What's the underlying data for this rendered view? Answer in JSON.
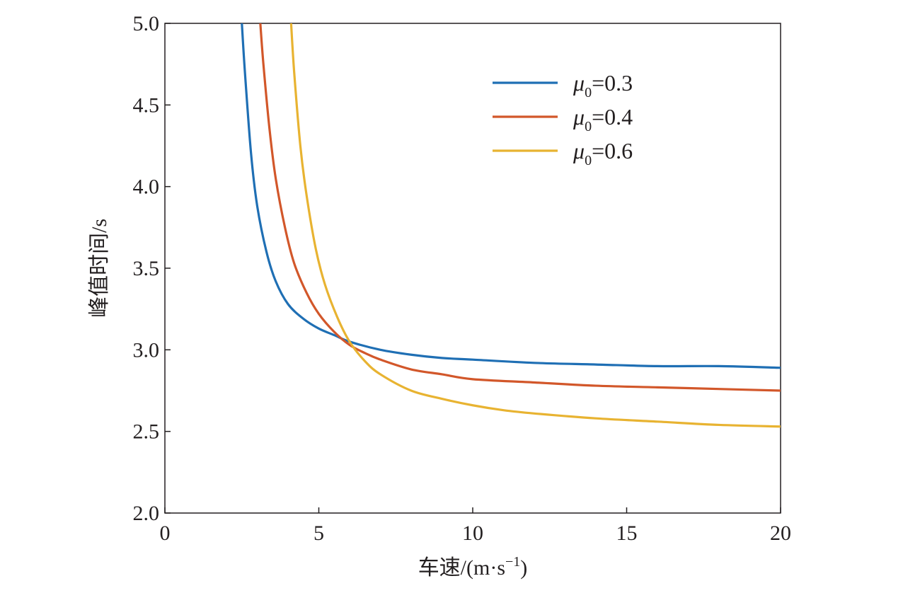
{
  "chart_data": {
    "type": "line",
    "title": "",
    "xlabel": "车速/(m·s",
    "xlabel_sup": "−1",
    "xlabel_close": ")",
    "ylabel": "峰值时间/s",
    "xlim": [
      0,
      20
    ],
    "ylim": [
      2.0,
      5.0
    ],
    "x_ticks": [
      0,
      5,
      10,
      15,
      20
    ],
    "x_tick_labels": [
      "0",
      "5",
      "10",
      "15",
      "20"
    ],
    "y_ticks": [
      2.0,
      2.5,
      3.0,
      3.5,
      4.0,
      4.5,
      5.0
    ],
    "y_tick_labels": [
      "2.0",
      "2.5",
      "3.0",
      "3.5",
      "4.0",
      "4.5",
      "5.0"
    ],
    "grid": false,
    "legend_position": "top-right",
    "series": [
      {
        "name": "μ0=0.3",
        "legend": {
          "symbol": "μ",
          "sub": "0",
          "value": "=0.3"
        },
        "color": "#1f6fb4",
        "x": [
          2.5,
          2.6,
          2.8,
          3.0,
          3.3,
          3.6,
          4.0,
          4.5,
          5.0,
          5.5,
          6.0,
          7.0,
          8.0,
          9.0,
          10.0,
          12.0,
          14.0,
          16.0,
          18.0,
          20.0
        ],
        "y": [
          5.0,
          4.7,
          4.2,
          3.88,
          3.6,
          3.42,
          3.28,
          3.19,
          3.13,
          3.09,
          3.05,
          3.0,
          2.97,
          2.95,
          2.94,
          2.92,
          2.91,
          2.9,
          2.9,
          2.89
        ]
      },
      {
        "name": "μ0=0.4",
        "legend": {
          "symbol": "μ",
          "sub": "0",
          "value": "=0.4"
        },
        "color": "#d2572a",
        "x": [
          3.1,
          3.2,
          3.4,
          3.6,
          3.9,
          4.2,
          4.6,
          5.0,
          5.5,
          6.0,
          6.5,
          7.0,
          8.0,
          9.0,
          10.0,
          12.0,
          14.0,
          16.0,
          18.0,
          20.0
        ],
        "y": [
          5.0,
          4.75,
          4.35,
          4.05,
          3.75,
          3.53,
          3.35,
          3.22,
          3.11,
          3.03,
          2.98,
          2.94,
          2.88,
          2.85,
          2.82,
          2.8,
          2.78,
          2.77,
          2.76,
          2.75
        ]
      },
      {
        "name": "μ0=0.6",
        "legend": {
          "symbol": "μ",
          "sub": "0",
          "value": "=0.6"
        },
        "color": "#e8b331",
        "x": [
          4.1,
          4.2,
          4.4,
          4.6,
          4.9,
          5.2,
          5.6,
          6.0,
          6.5,
          7.0,
          8.0,
          9.0,
          10.0,
          11.0,
          12.0,
          14.0,
          16.0,
          18.0,
          20.0
        ],
        "y": [
          5.0,
          4.7,
          4.25,
          3.95,
          3.62,
          3.4,
          3.2,
          3.05,
          2.93,
          2.85,
          2.75,
          2.7,
          2.66,
          2.63,
          2.61,
          2.58,
          2.56,
          2.54,
          2.53
        ]
      }
    ]
  }
}
